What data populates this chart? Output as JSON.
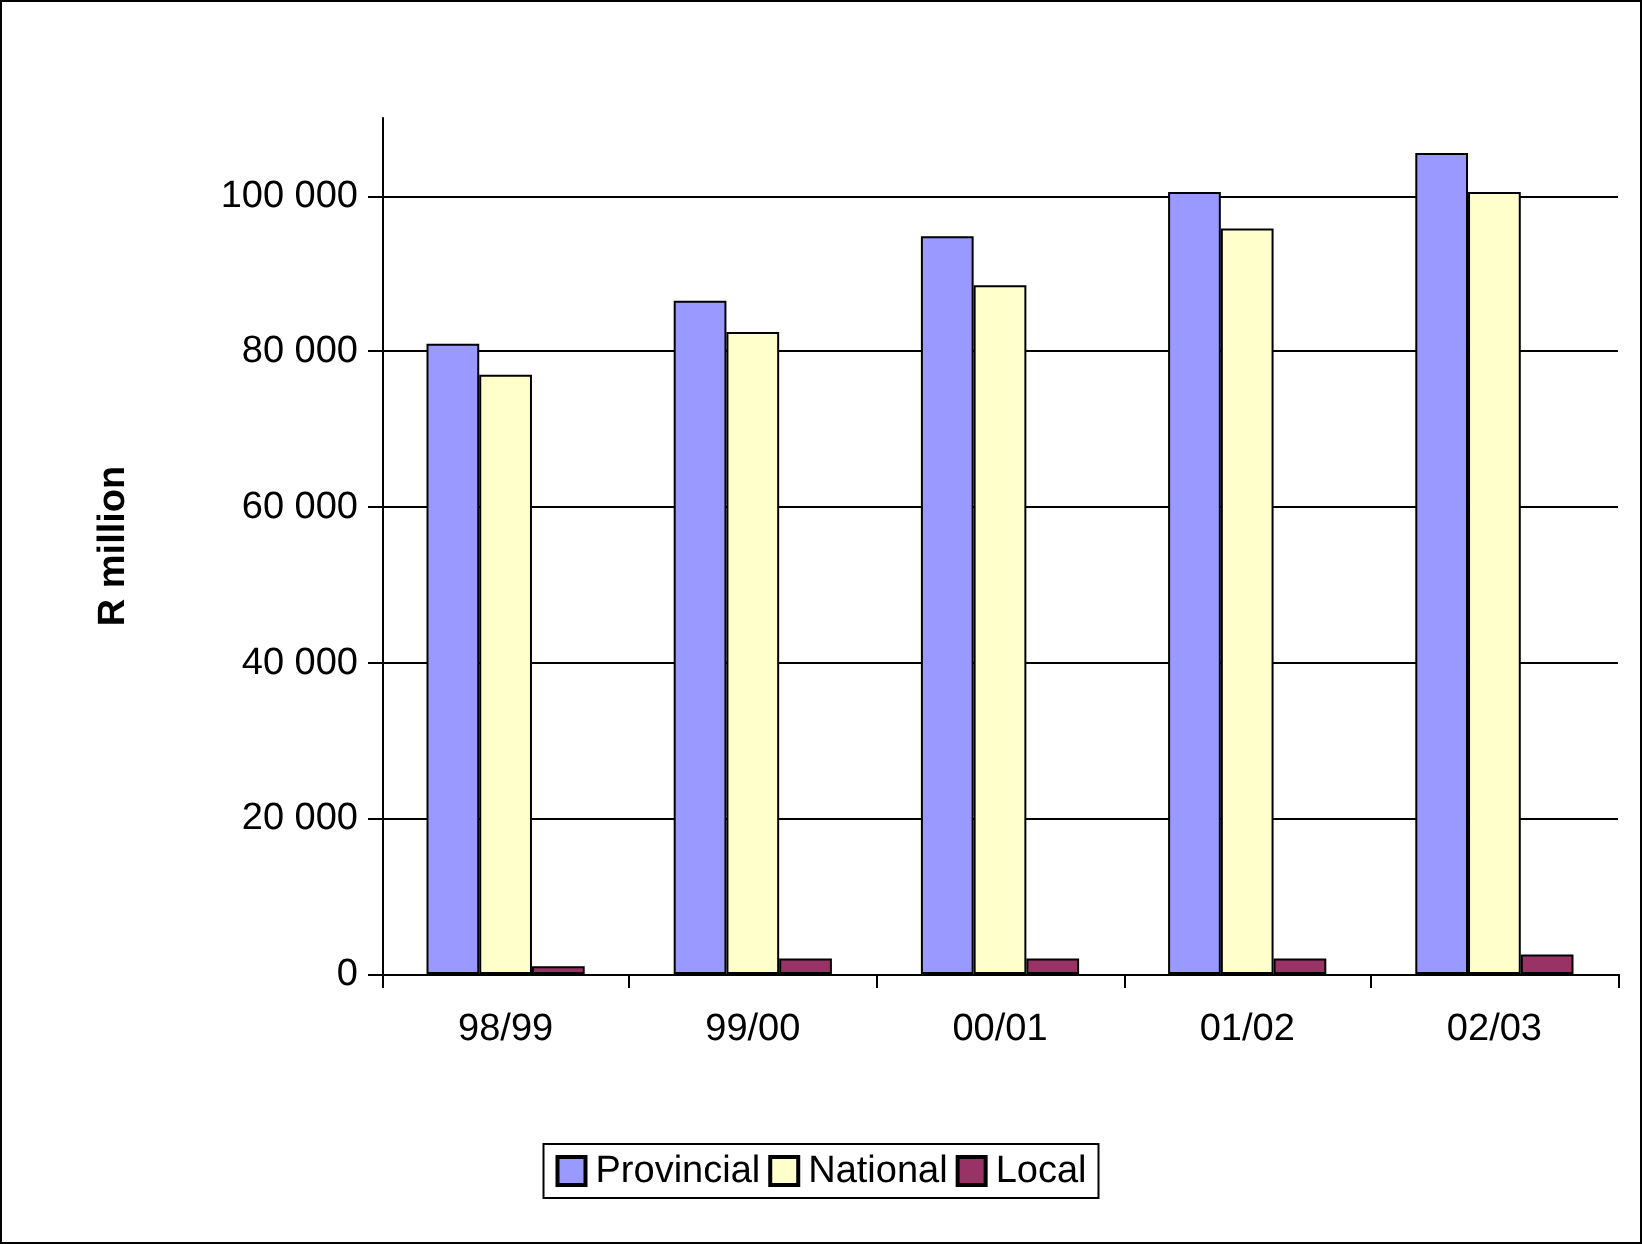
{
  "chart_data": {
    "type": "bar",
    "ylabel": "R million",
    "categories": [
      "98/99",
      "99/00",
      "00/01",
      "01/02",
      "02/03"
    ],
    "series": [
      {
        "name": "Provincial",
        "color": "#9999ff",
        "values": [
          81000,
          86500,
          94800,
          100500,
          105500
        ]
      },
      {
        "name": "National",
        "color": "#ffffcc",
        "values": [
          77000,
          82500,
          88500,
          95800,
          100500
        ]
      },
      {
        "name": "Local",
        "color": "#993366",
        "values": [
          1000,
          2000,
          2000,
          2000,
          2500
        ]
      }
    ],
    "ylim": [
      0,
      110000
    ],
    "yticks": [
      {
        "value": 0,
        "label": "0"
      },
      {
        "value": 20000,
        "label": "20 000"
      },
      {
        "value": 40000,
        "label": "40 000"
      },
      {
        "value": 60000,
        "label": "60 000"
      },
      {
        "value": 80000,
        "label": "80 000"
      },
      {
        "value": 100000,
        "label": "100 000"
      }
    ],
    "grid": "y",
    "legend": "bottom"
  }
}
